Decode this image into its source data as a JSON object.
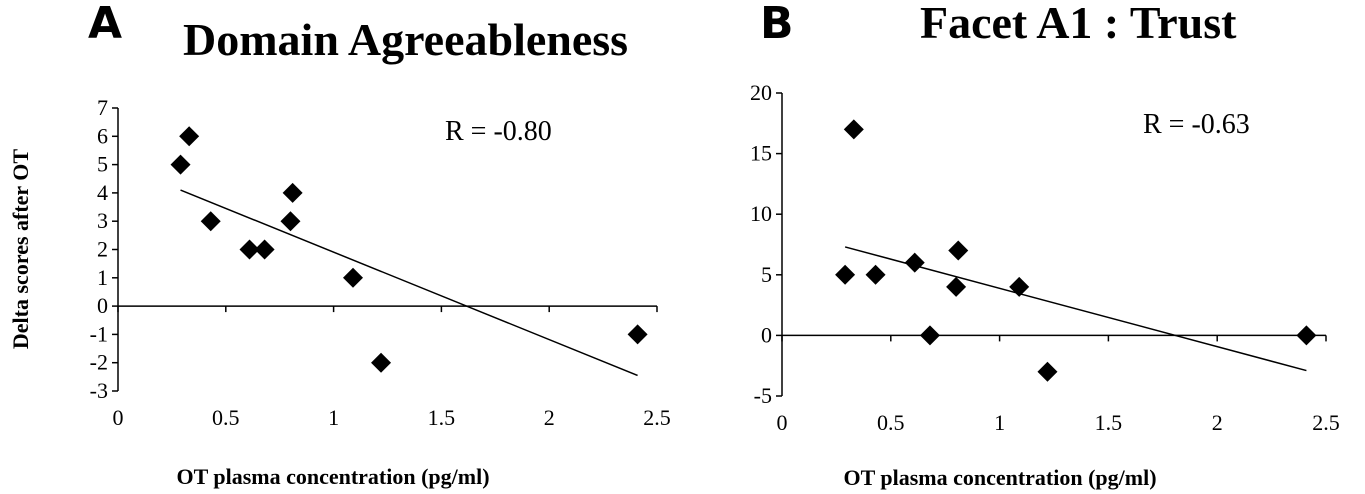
{
  "chart_data": [
    {
      "type": "scatter",
      "panel_label": "A",
      "title": "Domain Agreeableness",
      "xlabel": "OT plasma concentration (pg/ml)",
      "ylabel": "Delta scores after OT",
      "annotation": "R = -0.80",
      "xlim": [
        0,
        2.5
      ],
      "ylim": [
        -3,
        7
      ],
      "x_ticks": [
        "0",
        "0.5",
        "1",
        "1.5",
        "2",
        "2.5"
      ],
      "y_ticks": [
        "-3",
        "-2",
        "-1",
        "0",
        "1",
        "2",
        "3",
        "4",
        "5",
        "6",
        "7"
      ],
      "grid": false,
      "marker": "diamond",
      "points": [
        {
          "x": 0.29,
          "y": 5
        },
        {
          "x": 0.33,
          "y": 6
        },
        {
          "x": 0.43,
          "y": 3
        },
        {
          "x": 0.61,
          "y": 2
        },
        {
          "x": 0.68,
          "y": 2
        },
        {
          "x": 0.8,
          "y": 3
        },
        {
          "x": 0.81,
          "y": 4
        },
        {
          "x": 1.09,
          "y": 1
        },
        {
          "x": 1.22,
          "y": -2
        },
        {
          "x": 2.41,
          "y": -1
        }
      ],
      "trendline": [
        {
          "x": 0.29,
          "y": 4.1
        },
        {
          "x": 2.41,
          "y": -2.45
        }
      ]
    },
    {
      "type": "scatter",
      "panel_label": "B",
      "title": "Facet A1 : Trust",
      "xlabel": "OT plasma concentration (pg/ml)",
      "ylabel": "",
      "annotation": "R = -0.63",
      "xlim": [
        0,
        2.5
      ],
      "ylim": [
        -5,
        20
      ],
      "x_ticks": [
        "0",
        "0.5",
        "1",
        "1.5",
        "2",
        "2.5"
      ],
      "y_ticks": [
        "-5",
        "0",
        "5",
        "10",
        "15",
        "20"
      ],
      "grid": false,
      "marker": "diamond",
      "points": [
        {
          "x": 0.29,
          "y": 5
        },
        {
          "x": 0.33,
          "y": 17
        },
        {
          "x": 0.43,
          "y": 5
        },
        {
          "x": 0.61,
          "y": 6
        },
        {
          "x": 0.68,
          "y": 0
        },
        {
          "x": 0.8,
          "y": 4
        },
        {
          "x": 0.81,
          "y": 7
        },
        {
          "x": 1.09,
          "y": 4
        },
        {
          "x": 1.22,
          "y": -3
        },
        {
          "x": 2.41,
          "y": 0
        }
      ],
      "trendline": [
        {
          "x": 0.29,
          "y": 7.3
        },
        {
          "x": 2.41,
          "y": -2.9
        }
      ]
    }
  ]
}
